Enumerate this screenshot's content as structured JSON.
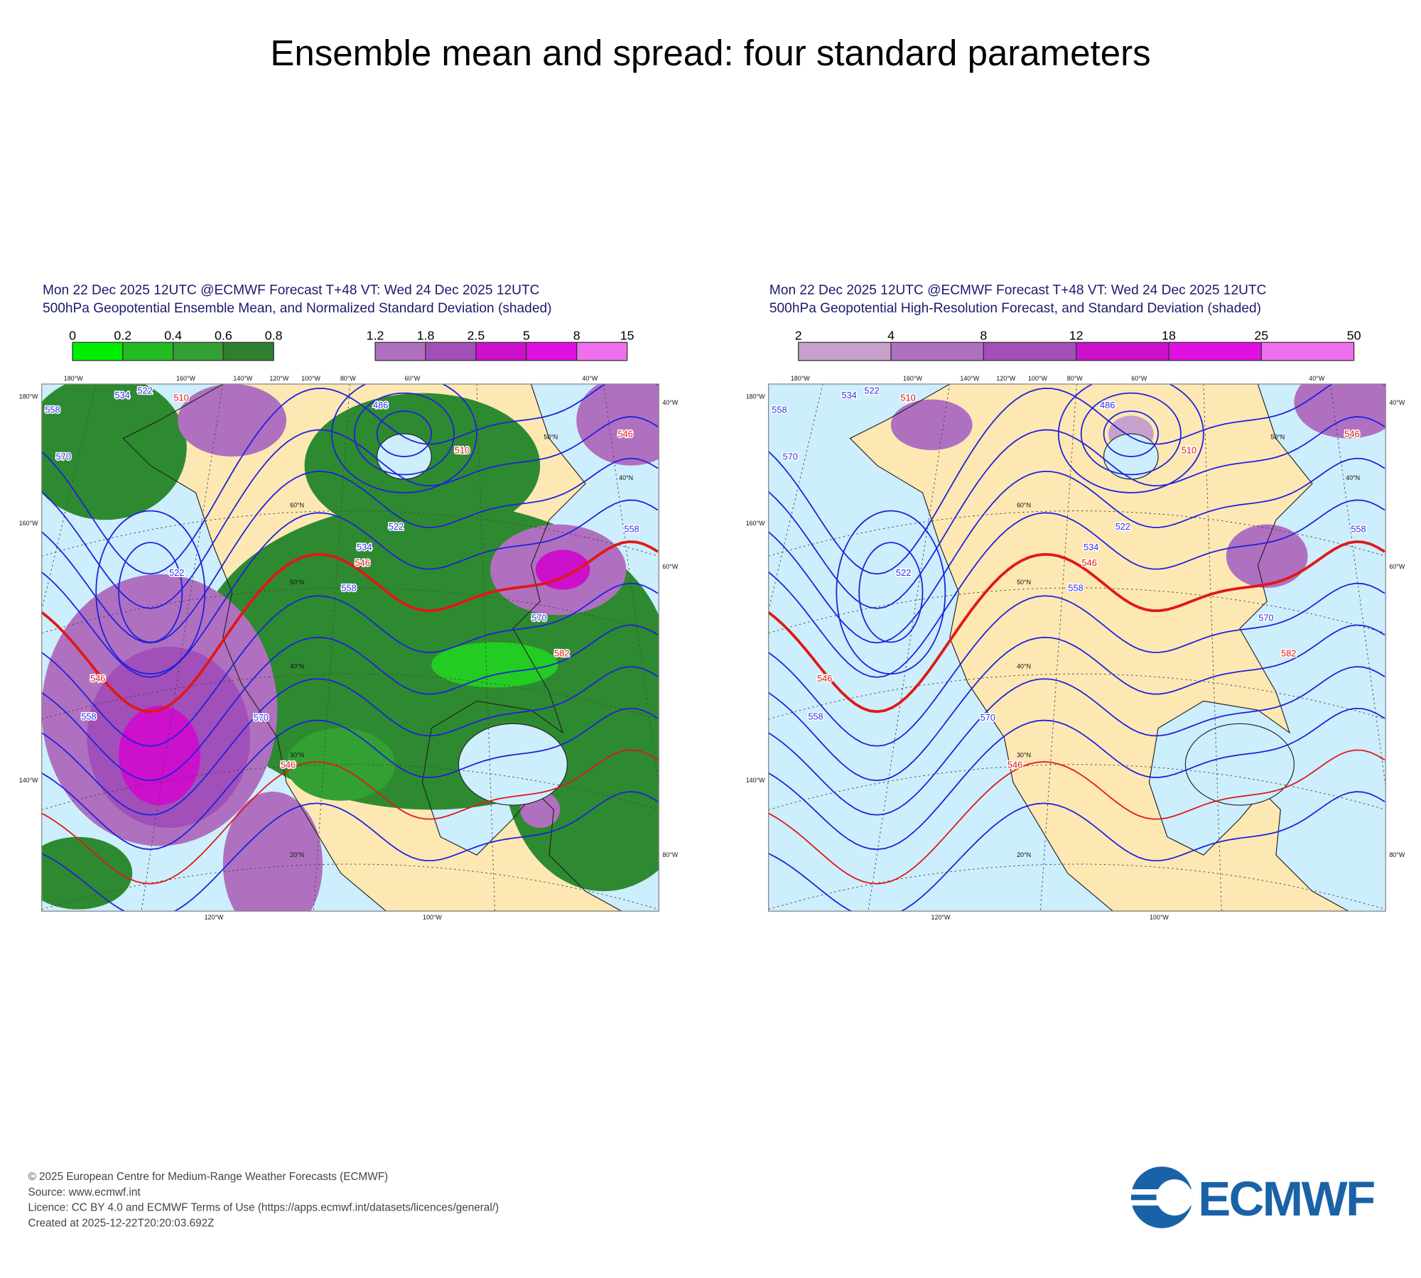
{
  "title": "Ensemble mean and spread: four standard parameters",
  "panels": [
    {
      "header": [
        "Mon 22 Dec 2025 12UTC @ECMWF Forecast T+48 VT: Wed 24 Dec 2025 12UTC",
        "500hPa Geopotential Ensemble Mean, and Normalized Standard Deviation (shaded)"
      ],
      "colorbars": [
        {
          "ticks": [
            0,
            0.2,
            0.4,
            0.6,
            0.8
          ],
          "colors": [
            "#00ee00",
            "#22bb22",
            "#33a033",
            "#2d8030"
          ]
        },
        {
          "ticks": [
            1.2,
            1.8,
            2.5,
            5,
            8,
            15
          ],
          "colors": [
            "#b070c0",
            "#a050b8",
            "#cc10cc",
            "#e010e0",
            "#ee70ee"
          ]
        }
      ],
      "map": {
        "top_labels": [
          "180°W",
          "160°W",
          "140°W",
          "120°W",
          "100°W",
          "80°W",
          "60°W",
          "40°W"
        ],
        "left_labels": [
          "180°W",
          "160°W",
          "140°W"
        ],
        "right_labels": [
          "40°W",
          "60°W",
          "80°W"
        ],
        "bottom_labels": [
          "120°W",
          "100°W"
        ],
        "lat_labels": [
          "60°N",
          "50°N",
          "40°N",
          "30°N",
          "20°N",
          "50°N",
          "40°N"
        ],
        "contour_labels": [
          "558",
          "534",
          "522",
          "510",
          "486",
          "510",
          "546",
          "558",
          "570",
          "522",
          "534",
          "546",
          "558",
          "570",
          "582",
          "522",
          "546",
          "558",
          "570",
          "546"
        ]
      }
    },
    {
      "header": [
        "Mon 22 Dec 2025 12UTC @ECMWF Forecast T+48 VT: Wed 24 Dec 2025 12UTC",
        "500hPa Geopotential High-Resolution Forecast, and Standard Deviation (shaded)"
      ],
      "colorbars": [
        {
          "ticks": [
            2,
            4,
            8,
            12,
            18,
            25,
            50
          ],
          "colors": [
            "#c8a0cc",
            "#b070c0",
            "#a050b8",
            "#cc10cc",
            "#e010e0",
            "#ee70ee"
          ]
        }
      ],
      "map": {
        "top_labels": [
          "180°W",
          "160°W",
          "140°W",
          "120°W",
          "100°W",
          "80°W",
          "60°W",
          "40°W"
        ],
        "left_labels": [
          "180°W",
          "160°W",
          "140°W"
        ],
        "right_labels": [
          "40°W",
          "60°W",
          "80°W"
        ],
        "bottom_labels": [
          "120°W",
          "100°W"
        ],
        "lat_labels": [
          "60°N",
          "50°N",
          "40°N",
          "30°N",
          "20°N",
          "50°N",
          "40°N"
        ],
        "contour_labels": [
          "558",
          "534",
          "522",
          "510",
          "486",
          "510",
          "546",
          "558",
          "570",
          "522",
          "534",
          "546",
          "558",
          "570",
          "582",
          "522",
          "546",
          "558",
          "570",
          "546"
        ]
      }
    }
  ],
  "footer": [
    "© 2025 European Centre for Medium-Range Weather Forecasts (ECMWF)",
    "Source: www.ecmwf.int",
    "Licence: CC BY 4.0 and ECMWF Terms of Use (https://apps.ecmwf.int/datasets/licences/general/)",
    "Created at 2025-12-22T20:20:03.692Z"
  ],
  "logo": "ECMWF"
}
